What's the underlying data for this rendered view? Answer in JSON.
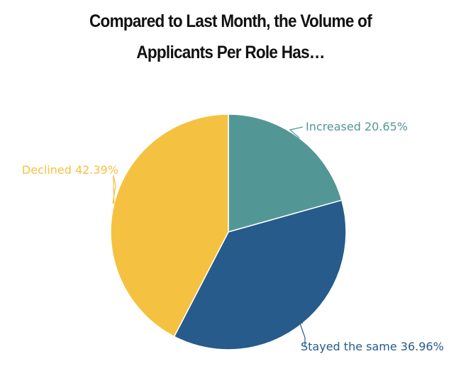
{
  "chart_data": {
    "type": "pie",
    "title_lines": [
      "Compared to Last Month, the Volume of",
      "Applicants Per Role Has…"
    ],
    "slices": [
      {
        "name": "Increased",
        "value": 20.65,
        "label": "Increased 20.65%",
        "color": "#529795"
      },
      {
        "name": "Stayed the same",
        "value": 36.96,
        "label": "Stayed the same 36.96%",
        "color": "#265B8C"
      },
      {
        "name": "Declined",
        "value": 42.39,
        "label": "Declined 42.39%",
        "color": "#F5C141"
      }
    ],
    "legend": "none",
    "start": "top",
    "direction": "clockwise"
  }
}
